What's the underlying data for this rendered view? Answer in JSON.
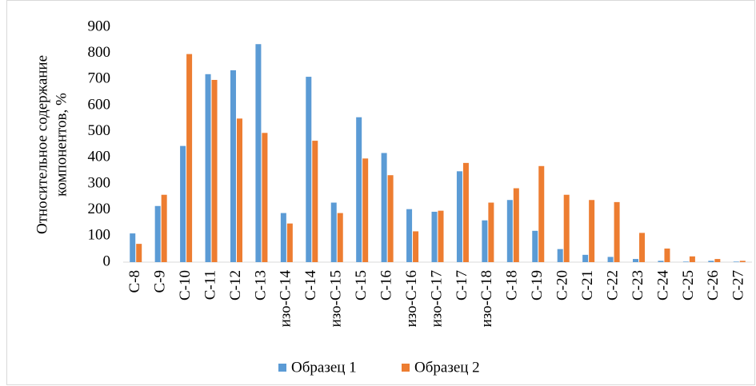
{
  "chart_data": {
    "type": "bar",
    "y_label": [
      "Относительное содержание",
      "компонентов, %"
    ],
    "categories": [
      "С-8",
      "С-9",
      "С-10",
      "С-11",
      "С-12",
      "С-13",
      "изо-С-14",
      "С-14",
      "изо-С-15",
      "С-15",
      "С-16",
      "изо-С-16",
      "изо-С-17",
      "С-17",
      "изо-С-18",
      "С-18",
      "С-19",
      "С-20",
      "С-21",
      "С-22",
      "С-23",
      "С-24",
      "С-25",
      "С-26",
      "С-27"
    ],
    "series": [
      {
        "name": "Образец 1",
        "color": "#5b9bd5",
        "values": [
          110,
          215,
          445,
          720,
          735,
          835,
          188,
          710,
          228,
          555,
          418,
          203,
          193,
          348,
          160,
          238,
          120,
          50,
          28,
          20,
          12,
          5,
          2,
          5,
          2
        ]
      },
      {
        "name": "Образец 2",
        "color": "#ed7d31",
        "values": [
          70,
          258,
          797,
          698,
          550,
          495,
          148,
          465,
          188,
          397,
          333,
          118,
          197,
          380,
          228,
          283,
          368,
          258,
          238,
          230,
          112,
          52,
          22,
          12,
          5
        ]
      }
    ],
    "ylim": [
      0,
      900
    ],
    "yticks": [
      0,
      100,
      200,
      300,
      400,
      500,
      600,
      700,
      800,
      900
    ],
    "grid": false,
    "legend": "bottom"
  }
}
